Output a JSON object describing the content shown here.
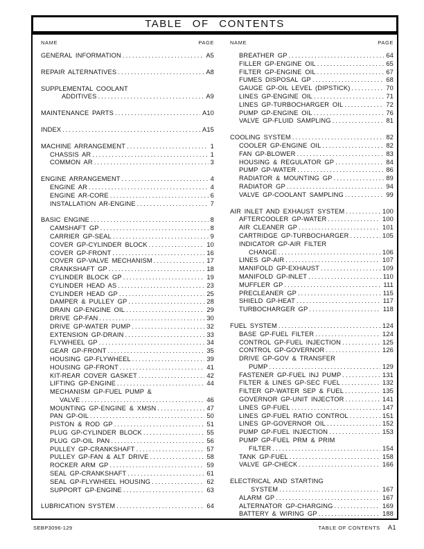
{
  "title": "TABLE OF CONTENTS",
  "column_headers": {
    "name": "NAME",
    "page": "PAGE"
  },
  "footer": {
    "doc_code": "SEBP3096-129",
    "label": "TABLE OF CONTENTS",
    "page": "A1"
  },
  "columns": [
    {
      "entries": [
        {
          "name": "GENERAL INFORMATION",
          "page": "A5",
          "level": 0
        },
        {
          "name": "REPAIR ALTERNATIVES",
          "page": "A8",
          "level": 0,
          "gap": true
        },
        {
          "name": "SUPPLEMENTAL COOLANT",
          "wrap": "ADDITIVES",
          "page": "A9",
          "level": 0,
          "gap": true
        },
        {
          "name": "MAINTENANCE PARTS",
          "page": "A10",
          "level": 0,
          "gap": true
        },
        {
          "name": "INDEX",
          "page": "A15",
          "level": 0,
          "gap": true
        },
        {
          "name": "MACHINE ARRANGEMENT",
          "page": "1",
          "level": 0,
          "gap": true
        },
        {
          "name": "CHASSIS AR",
          "page": "1",
          "level": 1
        },
        {
          "name": "COMMON AR",
          "page": "3",
          "level": 1
        },
        {
          "name": "ENGINE ARRANGEMENT",
          "page": "4",
          "level": 0,
          "gap": true
        },
        {
          "name": "ENGINE AR",
          "page": "4",
          "level": 1
        },
        {
          "name": "ENGINE AR-CORE",
          "page": "6",
          "level": 1
        },
        {
          "name": "INSTALLATION AR-ENGINE",
          "page": "7",
          "level": 1
        },
        {
          "name": "BASIC ENGINE",
          "page": "8",
          "level": 0,
          "gap": true
        },
        {
          "name": "CAMSHAFT GP",
          "page": "8",
          "level": 1
        },
        {
          "name": "CARRIER GP-SEAL",
          "page": "9",
          "level": 1
        },
        {
          "name": "COVER GP-CYLINDER BLOCK",
          "page": "10",
          "level": 1
        },
        {
          "name": "COVER GP-FRONT",
          "page": "16",
          "level": 1
        },
        {
          "name": "COVER GP-VALVE MECHANISM",
          "page": "17",
          "level": 1
        },
        {
          "name": "CRANKSHAFT GP",
          "page": "18",
          "level": 1
        },
        {
          "name": "CYLINDER BLOCK GP",
          "page": "19",
          "level": 1
        },
        {
          "name": "CYLINDER HEAD AS",
          "page": "23",
          "level": 1
        },
        {
          "name": "CYLINDER HEAD GP",
          "page": "25",
          "level": 1
        },
        {
          "name": "DAMPER & PULLEY GP",
          "page": "28",
          "level": 1
        },
        {
          "name": "DRAIN GP-ENGINE OIL",
          "page": "29",
          "level": 1
        },
        {
          "name": "DRIVE GP-FAN",
          "page": "30",
          "level": 1
        },
        {
          "name": "DRIVE GP-WATER PUMP",
          "page": "32",
          "level": 1
        },
        {
          "name": "EXTENSION GP-DRAIN",
          "page": "33",
          "level": 1
        },
        {
          "name": "FLYWHEEL GP",
          "page": "34",
          "level": 1
        },
        {
          "name": "GEAR GP-FRONT",
          "page": "35",
          "level": 1
        },
        {
          "name": "HOUSING GP-FLYWHEEL",
          "page": "39",
          "level": 1
        },
        {
          "name": "HOUSING GP-FRONT",
          "page": "41",
          "level": 1
        },
        {
          "name": "KIT-REAR COVER GASKET",
          "page": "42",
          "level": 1
        },
        {
          "name": "LIFTING GP-ENGINE",
          "page": "44",
          "level": 1
        },
        {
          "name": "MECHANISM GP-FUEL PUMP &",
          "wrap": "VALVE",
          "page": "46",
          "level": 1
        },
        {
          "name": "MOUNTING GP-ENGINE & XMSN",
          "page": "47",
          "level": 1
        },
        {
          "name": "PAN GP-OIL",
          "page": "50",
          "level": 1
        },
        {
          "name": "PISTON & ROD GP",
          "page": "51",
          "level": 1
        },
        {
          "name": "PLUG GP-CYLINDER BLOCK",
          "page": "55",
          "level": 1
        },
        {
          "name": "PLUG GP-OIL PAN",
          "page": "56",
          "level": 1
        },
        {
          "name": "PULLEY GP-CRANKSHAFT",
          "page": "57",
          "level": 1
        },
        {
          "name": "PULLEY GP-FAN & ALT DRIVE",
          "page": "58",
          "level": 1
        },
        {
          "name": "ROCKER ARM GP",
          "page": "59",
          "level": 1
        },
        {
          "name": "SEAL GP-CRANKSHAFT",
          "page": "61",
          "level": 1
        },
        {
          "name": "SEAL GP-FLYWHEEL HOUSING",
          "page": "62",
          "level": 1
        },
        {
          "name": "SUPPORT GP-ENGINE",
          "page": "63",
          "level": 1
        },
        {
          "name": "LUBRICATION SYSTEM",
          "page": "64",
          "level": 0,
          "gap": true
        }
      ]
    },
    {
      "entries": [
        {
          "name": "BREATHER GP",
          "page": "64",
          "level": 1
        },
        {
          "name": "FILLER GP-ENGINE OIL",
          "page": "65",
          "level": 1
        },
        {
          "name": "FILTER GP-ENGINE OIL",
          "page": "67",
          "level": 1
        },
        {
          "name": "FUMES DISPOSAL GP",
          "page": "68",
          "level": 1
        },
        {
          "name": "GAUGE GP-OIL LEVEL (DIPSTICK)",
          "page": "70",
          "level": 1
        },
        {
          "name": "LINES GP-ENGINE OIL",
          "page": "71",
          "level": 1
        },
        {
          "name": "LINES GP-TURBOCHARGER OIL",
          "page": "72",
          "level": 1
        },
        {
          "name": "PUMP GP-ENGINE OIL",
          "page": "76",
          "level": 1
        },
        {
          "name": "VALVE GP-FLUID SAMPLING",
          "page": "81",
          "level": 1
        },
        {
          "name": "COOLING SYSTEM",
          "page": "82",
          "level": 0,
          "gap": true
        },
        {
          "name": "COOLER GP-ENGINE OIL",
          "page": "82",
          "level": 1
        },
        {
          "name": "FAN GP-BLOWER",
          "page": "83",
          "level": 1
        },
        {
          "name": "HOUSING & REGULATOR GP",
          "page": "84",
          "level": 1
        },
        {
          "name": "PUMP GP-WATER",
          "page": "86",
          "level": 1
        },
        {
          "name": "RADIATOR & MOUNTING GP",
          "page": "89",
          "level": 1
        },
        {
          "name": "RADIATOR GP",
          "page": "94",
          "level": 1
        },
        {
          "name": "VALVE GP-COOLANT SAMPLING",
          "page": "99",
          "level": 1
        },
        {
          "name": "AIR INLET AND EXHAUST SYSTEM",
          "page": "100",
          "level": 0,
          "gap": true
        },
        {
          "name": "AFTERCOOLER GP-WATER",
          "page": "100",
          "level": 1
        },
        {
          "name": "AIR CLEANER GP",
          "page": "101",
          "level": 1
        },
        {
          "name": "CARTRIDGE GP-TURBOCHARGER",
          "page": "105",
          "level": 1
        },
        {
          "name": "INDICATOR GP-AIR FILTER",
          "wrap": "CHANGE",
          "page": "106",
          "level": 1
        },
        {
          "name": "LINES GP-AIR",
          "page": "107",
          "level": 1
        },
        {
          "name": "MANIFOLD GP-EXHAUST",
          "page": "109",
          "level": 1
        },
        {
          "name": "MANIFOLD GP-INLET",
          "page": "110",
          "level": 1
        },
        {
          "name": "MUFFLER GP",
          "page": "111",
          "level": 1
        },
        {
          "name": "PRECLEANER GP",
          "page": "115",
          "level": 1
        },
        {
          "name": "SHIELD GP-HEAT",
          "page": "117",
          "level": 1
        },
        {
          "name": "TURBOCHARGER GP",
          "page": "118",
          "level": 1
        },
        {
          "name": "FUEL SYSTEM",
          "page": "124",
          "level": 0,
          "gap": true
        },
        {
          "name": "BASE GP-FUEL FILTER",
          "page": "124",
          "level": 1
        },
        {
          "name": "CONTROL GP-FUEL INJECTION",
          "page": "125",
          "level": 1
        },
        {
          "name": "CONTROL GP-GOVERNOR",
          "page": "126",
          "level": 1
        },
        {
          "name": "DRIVE GP-GOV & TRANSFER",
          "wrap": "PUMP",
          "page": "129",
          "level": 1
        },
        {
          "name": "FASTENER GP-FUEL INJ PUMP",
          "page": "131",
          "level": 1
        },
        {
          "name": "FILTER & LINES GP-SEC FUEL",
          "page": "132",
          "level": 1
        },
        {
          "name": "FILTER GP-WATER SEP & FUEL",
          "page": "135",
          "level": 1
        },
        {
          "name": "GOVERNOR GP-UNIT INJECTOR",
          "page": "141",
          "level": 1
        },
        {
          "name": "LINES GP-FUEL",
          "page": "147",
          "level": 1
        },
        {
          "name": "LINES GP-FUEL RATIO CONTROL",
          "page": "151",
          "level": 1
        },
        {
          "name": "LINES GP-GOVERNOR OIL",
          "page": "152",
          "level": 1
        },
        {
          "name": "PUMP GP-FUEL INJECTION",
          "page": "153",
          "level": 1
        },
        {
          "name": "PUMP GP-FUEL PRM & PRIM",
          "wrap": "FILTER",
          "page": "154",
          "level": 1
        },
        {
          "name": "TANK GP-FUEL",
          "page": "158",
          "level": 1
        },
        {
          "name": "VALVE GP-CHECK",
          "page": "166",
          "level": 1
        },
        {
          "name": "ELECTRICAL AND STARTING",
          "wrap": "SYSTEM",
          "page": "167",
          "level": 0,
          "gap": true
        },
        {
          "name": "ALARM GP",
          "page": "167",
          "level": 1
        },
        {
          "name": "ALTERNATOR GP-CHARGING",
          "page": "169",
          "level": 1
        },
        {
          "name": "BATTERY & WIRING GP",
          "page": "188",
          "level": 1
        }
      ]
    }
  ]
}
